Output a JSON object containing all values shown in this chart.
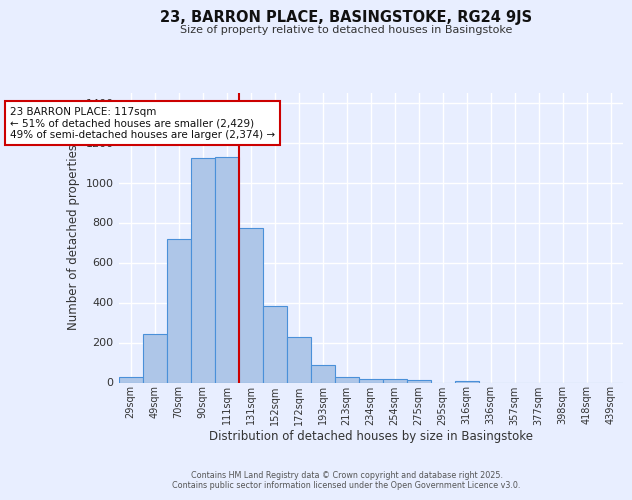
{
  "title": "23, BARRON PLACE, BASINGSTOKE, RG24 9JS",
  "subtitle": "Size of property relative to detached houses in Basingstoke",
  "xlabel": "Distribution of detached houses by size in Basingstoke",
  "ylabel": "Number of detached properties",
  "bar_labels": [
    "29sqm",
    "49sqm",
    "70sqm",
    "90sqm",
    "111sqm",
    "131sqm",
    "152sqm",
    "172sqm",
    "193sqm",
    "213sqm",
    "234sqm",
    "254sqm",
    "275sqm",
    "295sqm",
    "316sqm",
    "336sqm",
    "357sqm",
    "377sqm",
    "398sqm",
    "418sqm",
    "439sqm"
  ],
  "bar_values": [
    30,
    245,
    720,
    1125,
    1130,
    775,
    385,
    230,
    90,
    30,
    20,
    20,
    15,
    0,
    10,
    0,
    0,
    0,
    0,
    0,
    0
  ],
  "bar_color": "#aec6e8",
  "bar_edge_color": "#4a90d9",
  "ylim": [
    0,
    1450
  ],
  "yticks": [
    0,
    200,
    400,
    600,
    800,
    1000,
    1200,
    1400
  ],
  "property_line_x": 4.5,
  "property_line_color": "#cc0000",
  "annotation_title": "23 BARRON PLACE: 117sqm",
  "annotation_line1": "← 51% of detached houses are smaller (2,429)",
  "annotation_line2": "49% of semi-detached houses are larger (2,374) →",
  "bg_color": "#e8eeff",
  "grid_color": "#ffffff",
  "footer1": "Contains HM Land Registry data © Crown copyright and database right 2025.",
  "footer2": "Contains public sector information licensed under the Open Government Licence v3.0."
}
